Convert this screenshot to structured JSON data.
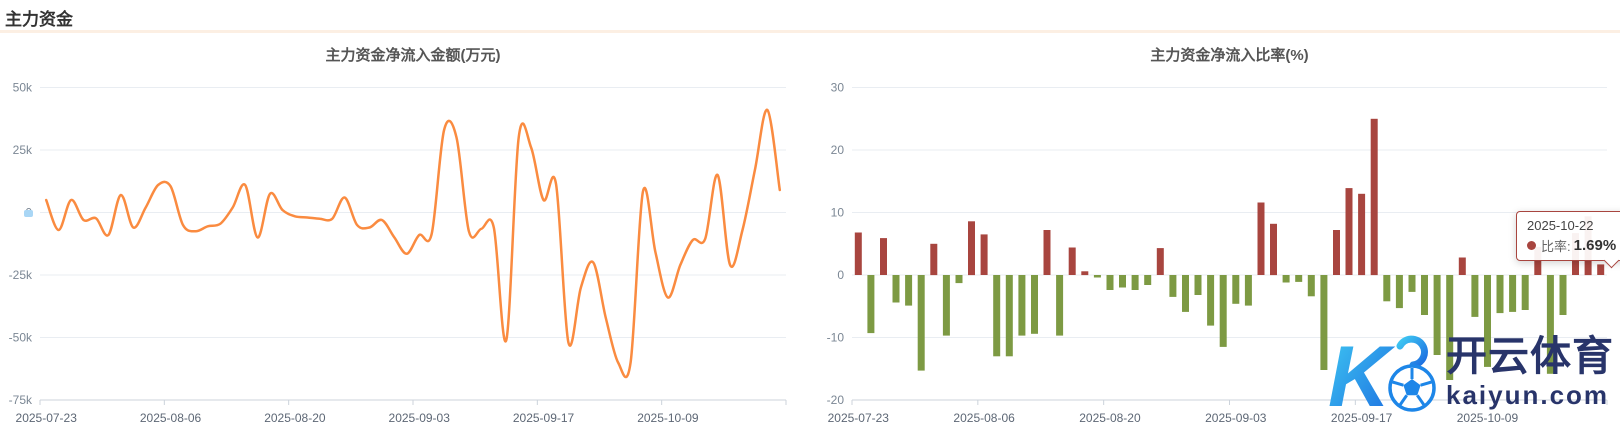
{
  "header": {
    "title": "主力资金"
  },
  "watermark": {
    "brand": "开云体育",
    "domain": "kaiyun.com",
    "logo_letter": "K"
  },
  "tooltip": {
    "date": "2025-10-22",
    "series_label": "比率:",
    "value": "1.69%"
  },
  "colors": {
    "line": "#fa8b40",
    "bar_up": "#a8453f",
    "bar_down": "#7d9a43",
    "grid": "#e9edf2",
    "axis": "#ccd3db",
    "y_label": "#7b8794",
    "x_label": "#5d6775",
    "tooltip_border": "#a8453f",
    "watermark_text": "#28346a",
    "divider": "#fcefe3"
  },
  "chart_data": [
    {
      "type": "line",
      "title": "主力资金净流入金额(万元)",
      "ylabel": "万元",
      "ylim": [
        -75000,
        50000
      ],
      "grid": true,
      "series_color": "#fa8b40",
      "y_tick_values": [
        50000,
        25000,
        0,
        -25000,
        -50000,
        -75000
      ],
      "y_tick_labels": [
        "50k",
        "25k",
        "0",
        "-25k",
        "-50k",
        "-75k"
      ],
      "x_tick_indices": [
        0,
        10,
        20,
        30,
        40,
        50
      ],
      "x_tick_labels": [
        "2025-07-23",
        "2025-08-06",
        "2025-08-20",
        "2025-09-03",
        "2025-09-17",
        "2025-10-09"
      ],
      "x": [
        "2025-07-23",
        "2025-07-24",
        "2025-07-25",
        "2025-07-28",
        "2025-07-29",
        "2025-07-30",
        "2025-07-31",
        "2025-08-01",
        "2025-08-04",
        "2025-08-05",
        "2025-08-06",
        "2025-08-07",
        "2025-08-08",
        "2025-08-11",
        "2025-08-12",
        "2025-08-13",
        "2025-08-14",
        "2025-08-15",
        "2025-08-18",
        "2025-08-19",
        "2025-08-20",
        "2025-08-21",
        "2025-08-22",
        "2025-08-25",
        "2025-08-26",
        "2025-08-27",
        "2025-08-28",
        "2025-08-29",
        "2025-09-01",
        "2025-09-02",
        "2025-09-03",
        "2025-09-04",
        "2025-09-05",
        "2025-09-08",
        "2025-09-09",
        "2025-09-10",
        "2025-09-11",
        "2025-09-12",
        "2025-09-15",
        "2025-09-16",
        "2025-09-17",
        "2025-09-18",
        "2025-09-19",
        "2025-09-22",
        "2025-09-23",
        "2025-09-24",
        "2025-09-25",
        "2025-09-26",
        "2025-09-29",
        "2025-09-30",
        "2025-10-09",
        "2025-10-10",
        "2025-10-13",
        "2025-10-14",
        "2025-10-15",
        "2025-10-16",
        "2025-10-17",
        "2025-10-20",
        "2025-10-21",
        "2025-10-22"
      ],
      "values": [
        5000,
        -7000,
        5000,
        -3000,
        -2300,
        -9000,
        7000,
        -6000,
        2000,
        11000,
        10500,
        -5000,
        -7500,
        -5500,
        -4500,
        2000,
        11000,
        -10000,
        7500,
        1000,
        -1500,
        -2000,
        -2500,
        -2500,
        6000,
        -5000,
        -6000,
        -3000,
        -10000,
        -16500,
        -9000,
        -8500,
        33000,
        30000,
        -7500,
        -6500,
        -6000,
        -51000,
        30000,
        26000,
        5000,
        11500,
        -52000,
        -30000,
        -20000,
        -42000,
        -60000,
        -60000,
        8500,
        -16000,
        -34000,
        -21000,
        -11000,
        -10500,
        15000,
        -21000,
        -7000,
        17000,
        41000,
        9000
      ]
    },
    {
      "type": "bar",
      "title": "主力资金净流入比率(%)",
      "ylabel": "%",
      "ylim": [
        -20,
        30
      ],
      "grid": true,
      "positive_color": "#a8453f",
      "negative_color": "#7d9a43",
      "hover_index": 59,
      "y_tick_values": [
        30,
        20,
        10,
        0,
        -10,
        -20
      ],
      "y_tick_labels": [
        "30",
        "20",
        "10",
        "0",
        "-10",
        "-20"
      ],
      "x_tick_indices": [
        0,
        10,
        20,
        30,
        40,
        50
      ],
      "x_tick_labels": [
        "2025-07-23",
        "2025-08-06",
        "2025-08-20",
        "2025-09-03",
        "2025-09-17",
        "2025-10-09"
      ],
      "x": [
        "2025-07-23",
        "2025-07-24",
        "2025-07-25",
        "2025-07-28",
        "2025-07-29",
        "2025-07-30",
        "2025-07-31",
        "2025-08-01",
        "2025-08-04",
        "2025-08-05",
        "2025-08-06",
        "2025-08-07",
        "2025-08-08",
        "2025-08-11",
        "2025-08-12",
        "2025-08-13",
        "2025-08-14",
        "2025-08-15",
        "2025-08-18",
        "2025-08-19",
        "2025-08-20",
        "2025-08-21",
        "2025-08-22",
        "2025-08-25",
        "2025-08-26",
        "2025-08-27",
        "2025-08-28",
        "2025-08-29",
        "2025-09-01",
        "2025-09-02",
        "2025-09-03",
        "2025-09-04",
        "2025-09-05",
        "2025-09-08",
        "2025-09-09",
        "2025-09-10",
        "2025-09-11",
        "2025-09-12",
        "2025-09-15",
        "2025-09-16",
        "2025-09-17",
        "2025-09-18",
        "2025-09-19",
        "2025-09-22",
        "2025-09-23",
        "2025-09-24",
        "2025-09-25",
        "2025-09-26",
        "2025-09-29",
        "2025-09-30",
        "2025-10-09",
        "2025-10-10",
        "2025-10-13",
        "2025-10-14",
        "2025-10-15",
        "2025-10-16",
        "2025-10-17",
        "2025-10-20",
        "2025-10-21",
        "2025-10-22"
      ],
      "values": [
        6.8,
        -9.3,
        5.9,
        -4.4,
        -4.9,
        -15.3,
        5.0,
        -9.7,
        -1.3,
        8.6,
        6.5,
        -13.0,
        -13.0,
        -9.7,
        -9.4,
        7.2,
        -9.7,
        4.4,
        0.6,
        -0.4,
        -2.4,
        -2.0,
        -2.4,
        -1.6,
        4.3,
        -3.5,
        -5.9,
        -3.2,
        -8.1,
        -11.5,
        -4.6,
        -4.9,
        11.6,
        8.2,
        -1.2,
        -1.1,
        -3.4,
        -15.2,
        7.2,
        13.9,
        13.0,
        25.0,
        -4.2,
        -5.3,
        -2.7,
        -6.4,
        -12.8,
        -16.8,
        2.8,
        -6.7,
        -14.7,
        -6.1,
        -5.9,
        -5.6,
        4.5,
        -15.8,
        -6.4,
        6.7,
        9.4,
        1.69
      ]
    }
  ]
}
